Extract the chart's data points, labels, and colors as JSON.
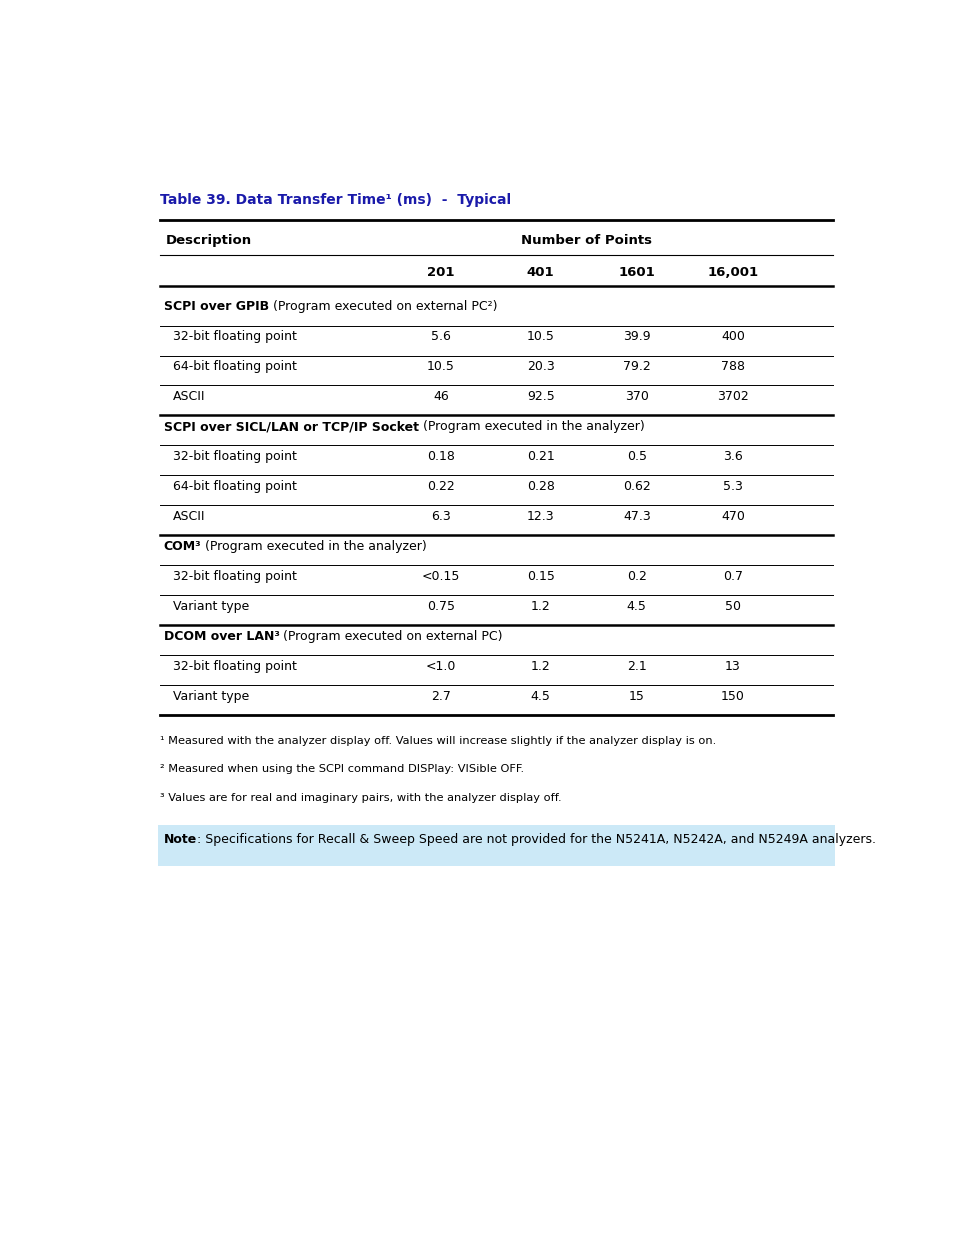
{
  "title": "Table 39. Data Transfer Time¹ (ms)  -  Typical",
  "title_color": "#1a1aaa",
  "background_color": "#ffffff",
  "rows": [
    {
      "type": "subheader",
      "bold": "SCPI over GPIB",
      "suffix": " (Program executed on external PC²)",
      "vals": [
        "",
        "",
        "",
        ""
      ]
    },
    {
      "type": "data",
      "desc": "32-bit floating point",
      "vals": [
        "5.6",
        "10.5",
        "39.9",
        "400"
      ]
    },
    {
      "type": "data",
      "desc": "64-bit floating point",
      "vals": [
        "10.5",
        "20.3",
        "79.2",
        "788"
      ]
    },
    {
      "type": "data",
      "desc": "ASCII",
      "vals": [
        "46",
        "92.5",
        "370",
        "3702"
      ]
    },
    {
      "type": "subheader",
      "bold": "SCPI over SICL/LAN or TCP/IP Socket",
      "suffix": " (Program executed in the analyzer)",
      "vals": [
        "",
        "",
        "",
        ""
      ]
    },
    {
      "type": "data",
      "desc": "32-bit floating point",
      "vals": [
        "0.18",
        "0.21",
        "0.5",
        "3.6"
      ]
    },
    {
      "type": "data",
      "desc": "64-bit floating point",
      "vals": [
        "0.22",
        "0.28",
        "0.62",
        "5.3"
      ]
    },
    {
      "type": "data",
      "desc": "ASCII",
      "vals": [
        "6.3",
        "12.3",
        "47.3",
        "470"
      ]
    },
    {
      "type": "subheader",
      "bold": "COM³",
      "suffix": " (Program executed in the analyzer)",
      "vals": [
        "",
        "",
        "",
        ""
      ]
    },
    {
      "type": "data",
      "desc": "32-bit floating point",
      "vals": [
        "<0.15",
        "0.15",
        "0.2",
        "0.7"
      ]
    },
    {
      "type": "data",
      "desc": "Variant type",
      "vals": [
        "0.75",
        "1.2",
        "4.5",
        "50"
      ]
    },
    {
      "type": "subheader",
      "bold": "DCOM over LAN³",
      "suffix": " (Program executed on external PC)",
      "vals": [
        "",
        "",
        "",
        ""
      ]
    },
    {
      "type": "data",
      "desc": "32-bit floating point",
      "vals": [
        "<1.0",
        "1.2",
        "2.1",
        "13"
      ]
    },
    {
      "type": "data",
      "desc": "Variant type",
      "vals": [
        "2.7",
        "4.5",
        "15",
        "150"
      ]
    }
  ],
  "footnotes": [
    "¹ Measured with the analyzer display off. Values will increase slightly if the analyzer display is on.",
    "² Measured when using the SCPI command DISPlay: VISible OFF.",
    "³ Values are for real and imaginary pairs, with the analyzer display off."
  ],
  "note_bold": "Note",
  "note_rest": ": Specifications for Recall & Sweep Speed are not provided for the N5241A, N5242A, and N5249A analyzers.",
  "note_bg_color": "#cce9f7",
  "col_labels": [
    "201",
    "401",
    "1601",
    "16,001"
  ]
}
